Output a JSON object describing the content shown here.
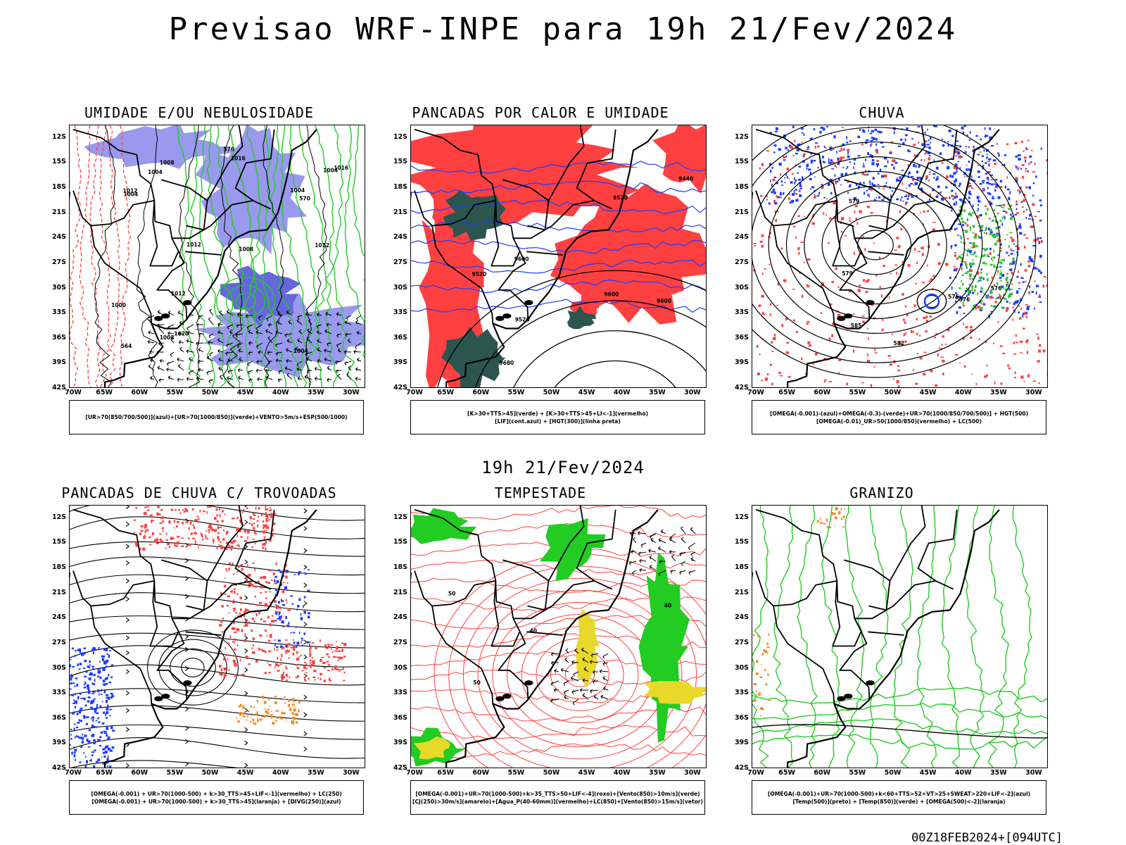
{
  "title": "Previsao WRF-INPE  para 19h 21/Fev/2024",
  "mid_title": "19h 21/Fev/2024",
  "footer": "00Z18FEB2024+[094UTC]",
  "lat_labels": [
    "12S",
    "15S",
    "18S",
    "21S",
    "24S",
    "27S",
    "30S",
    "33S",
    "36S",
    "39S",
    "42S"
  ],
  "lon_labels": [
    "70W",
    "65W",
    "60W",
    "55W",
    "50W",
    "45W",
    "40W",
    "35W",
    "30W"
  ],
  "colors": {
    "green": "#22cc22",
    "red": "#ff4040",
    "blue": "#1a3cff",
    "lavender": "#9999ee",
    "darkteal": "#2c5550",
    "yellow": "#e8d82a",
    "orange": "#f08a24"
  },
  "panels": [
    {
      "id": "umidade",
      "title": "UMIDADE E/OU NEBULOSIDADE",
      "legend": [
        "[UR>70(850/700/500)](azul)+[UR>70(1000/850)](verde)+VENTO>5m/s+ESP(500/1000)"
      ],
      "contour_labels": [
        "1004",
        "1012",
        "1012",
        "1004",
        "1000",
        "1004",
        "1008",
        "1008",
        "1012",
        "1004",
        "1004",
        "1008",
        "1012",
        "1016",
        "1020",
        "1016",
        "564",
        "570",
        "576"
      ]
    },
    {
      "id": "pancadas-calor",
      "title": "PANCADAS POR CALOR E UMIDADE",
      "legend": [
        "[K>30+TTS>45](verde) + [K>30+TTS>45+LI<-1](vermelho)",
        "[LIF](cont.azul) + [HGT(300)](linha preta)"
      ],
      "contour_labels": [
        "9680",
        "9600",
        "9600",
        "9520",
        "9600",
        "9520",
        "9520",
        "9440"
      ]
    },
    {
      "id": "chuva",
      "title": "CHUVA",
      "legend": [
        "[OMEGA(-0.001)-(azul)+OMEGA(-0.3)-(verde)+UR>70(1000/850/700/500)] + HGT(500)",
        "[OMEGA(-0.01)_UR>50(1000/850)(vermelho) + LC(500)"
      ],
      "contour_labels": [
        "585",
        "582",
        "579",
        "576",
        "576",
        "579",
        "576"
      ]
    },
    {
      "id": "pancadas-trovoadas",
      "title": "PANCADAS DE CHUVA C/ TROVOADAS",
      "legend": [
        "[OMEGA(-0.001) + UR>70(1000-500) + k>30_TTS>45+LIF<-1](vermelho) + LC(250)",
        "[OMEGA(-0.001) + UR>70(1000-500) + k>30_TTS>45](laranja) + [DIVG(250)](azul)"
      ],
      "contour_labels": []
    },
    {
      "id": "tempestade",
      "title": "TEMPESTADE",
      "legend": [
        "[OMEGA(-0.001)+UR>70(1000-500)+k>35_TTS>50+LIF<-4](roxo)+[Vento(850)>10m/s](verde)",
        "[CJ(250)>30m/s](amarelo)+[Agua_P(40-60mm)](vermelho)+LC(850)+[Vento(850)>15m/s](vetor)"
      ],
      "contour_labels": [
        "40",
        "50",
        "50",
        "40"
      ]
    },
    {
      "id": "granizo",
      "title": "GRANIZO",
      "legend": [
        "[OMEGA(-0.001)+UR>70(1000-500)+k<60+TTS>52+VT>25+SWEAT>220+LIF<-2](azul)",
        "[Temp(500)](preto) + [Temp(850)](verde) + [OMEGA(500)<-2](laranja)"
      ],
      "contour_labels": []
    }
  ]
}
